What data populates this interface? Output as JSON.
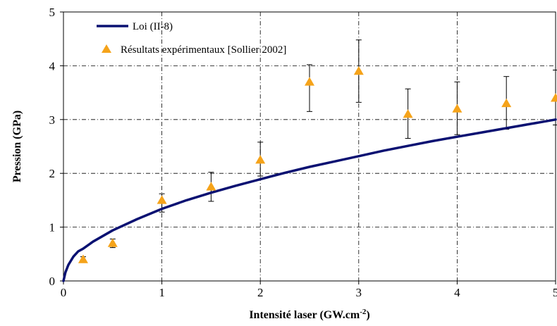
{
  "chart_data": {
    "type": "line",
    "xlabel": "Intensité laser (GW.cm",
    "xlabel_sup": "-2",
    "xlabel_end": ")",
    "ylabel": "Pression (GPa)",
    "xlim": [
      0,
      5
    ],
    "ylim": [
      0,
      5
    ],
    "xticks": [
      "0",
      "1",
      "2",
      "3",
      "4",
      "5"
    ],
    "yticks": [
      "0",
      "1",
      "2",
      "3",
      "4",
      "5"
    ],
    "grid": true,
    "legend_position": "top-left",
    "series": [
      {
        "name": "Loi (II-8)",
        "kind": "line",
        "color": "#0a1172",
        "x": [
          0,
          0.02,
          0.05,
          0.1,
          0.15,
          0.2,
          0.3,
          0.5,
          0.75,
          1,
          1.25,
          1.5,
          1.75,
          2,
          2.25,
          2.5,
          2.75,
          3,
          3.25,
          3.5,
          3.75,
          4,
          4.25,
          4.5,
          4.75,
          5
        ],
        "y": [
          0,
          0.16,
          0.3,
          0.45,
          0.55,
          0.6,
          0.73,
          0.94,
          1.15,
          1.34,
          1.5,
          1.64,
          1.77,
          1.89,
          2.01,
          2.12,
          2.22,
          2.32,
          2.42,
          2.51,
          2.6,
          2.68,
          2.76,
          2.84,
          2.92,
          3.0
        ]
      },
      {
        "name": "Résultats expérimentaux [Sollier 2002]",
        "kind": "scatter",
        "marker": "triangle",
        "color": "#f5a31a",
        "x": [
          0.2,
          0.5,
          1,
          1.5,
          2,
          2.5,
          3,
          3.5,
          4,
          4.5,
          5
        ],
        "y": [
          0.4,
          0.7,
          1.5,
          1.75,
          2.25,
          3.7,
          3.9,
          3.1,
          3.2,
          3.3,
          3.4
        ],
        "err_low": [
          0.35,
          0.62,
          1.28,
          1.48,
          1.95,
          3.15,
          3.32,
          2.65,
          2.72,
          2.82,
          2.9
        ],
        "err_high": [
          0.45,
          0.78,
          1.62,
          2.02,
          2.58,
          4.02,
          4.48,
          3.57,
          3.7,
          3.8,
          3.92
        ]
      }
    ]
  }
}
